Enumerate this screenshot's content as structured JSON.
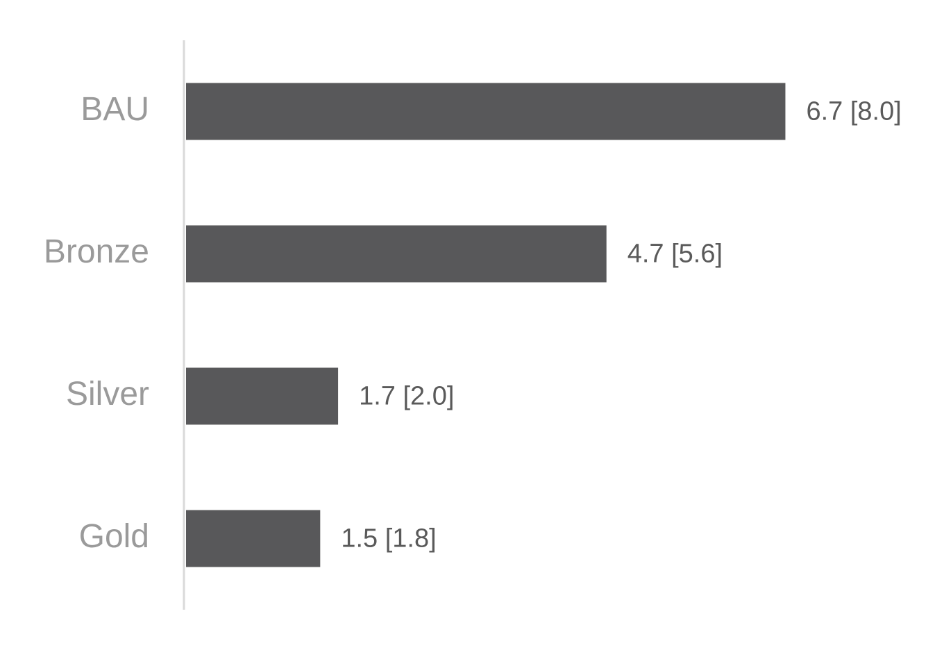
{
  "chart_data": {
    "type": "barh",
    "categories": [
      "BAU",
      "Bronze",
      "Silver",
      "Gold"
    ],
    "values": [
      6.7,
      4.7,
      1.7,
      1.5
    ],
    "value_labels": [
      "6.7 [8.0]",
      "4.7 [5.6]",
      "1.7 [2.0]",
      "1.5 [1.8]"
    ],
    "color": "#58585a",
    "xlim": [
      0,
      8
    ]
  }
}
